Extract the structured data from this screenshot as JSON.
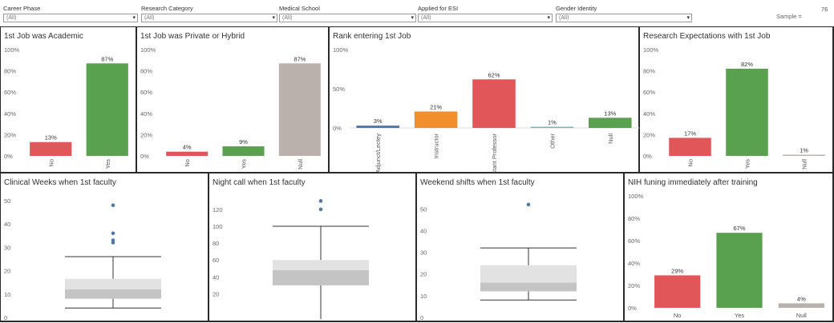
{
  "filters": [
    {
      "label": "Career Phase",
      "value": "(All)"
    },
    {
      "label": "Research Category",
      "value": "(All)"
    },
    {
      "label": "Medical School",
      "value": "(All)"
    },
    {
      "label": "Applied for ESI",
      "value": "(All)"
    },
    {
      "label": "Gender Identity",
      "value": "(All)"
    }
  ],
  "sample": {
    "label": "Sample =",
    "value": "76"
  },
  "colors": {
    "red": "#e15759",
    "green": "#59a14f",
    "gray": "#bab0ac",
    "blue": "#4e79a7",
    "orange": "#f28e2b",
    "teal": "#76b7b2",
    "box_light": "#e2e2e2",
    "box_dark": "#c4c4c4",
    "outlier": "#4e79a7"
  },
  "chart_data": [
    {
      "type": "bar",
      "title": "1st Job was Academic",
      "categories": [
        "No",
        "Yes"
      ],
      "values": [
        13,
        87
      ],
      "labels": [
        "13%",
        "87%"
      ],
      "colors": [
        "#e15759",
        "#59a14f"
      ],
      "ylim": [
        0,
        100
      ],
      "yticks": [
        "0%",
        "20%",
        "40%",
        "60%",
        "80%",
        "100%"
      ],
      "ytick_values": [
        0,
        20,
        40,
        60,
        80,
        100
      ]
    },
    {
      "type": "bar",
      "title": "1st Job was Private or Hybrid",
      "categories": [
        "No",
        "Yes",
        "Null"
      ],
      "values": [
        4,
        9,
        87
      ],
      "labels": [
        "4%",
        "9%",
        "87%"
      ],
      "colors": [
        "#e15759",
        "#59a14f",
        "#bab0ac"
      ],
      "ylim": [
        0,
        100
      ],
      "yticks": [
        "0%",
        "20%",
        "40%",
        "60%",
        "80%",
        "100%"
      ],
      "ytick_values": [
        0,
        20,
        40,
        60,
        80,
        100
      ]
    },
    {
      "type": "bar",
      "title": "Rank entering 1st Job",
      "categories": [
        "Adjunct/Lectey",
        "Instructor",
        "Assistant Professor",
        "Other",
        "Null"
      ],
      "values": [
        3,
        21,
        62,
        1,
        13
      ],
      "labels": [
        "3%",
        "21%",
        "62%",
        "1%",
        "13%"
      ],
      "colors": [
        "#4e79a7",
        "#f28e2b",
        "#e15759",
        "#76b7b2",
        "#59a14f"
      ],
      "ylim": [
        -2,
        100
      ],
      "yticks": [
        "0%",
        "50%",
        "100%"
      ],
      "ytick_values": [
        0,
        50,
        100
      ]
    },
    {
      "type": "bar",
      "title": "Research Expectations with 1st Job",
      "categories": [
        "No",
        "Yes",
        "Null"
      ],
      "values": [
        17,
        82,
        1
      ],
      "labels": [
        "17%",
        "82%",
        "1%"
      ],
      "colors": [
        "#e15759",
        "#59a14f",
        "#bab0ac"
      ],
      "ylim": [
        0,
        100
      ],
      "yticks": [
        "0%",
        "20%",
        "40%",
        "60%",
        "80%",
        "100%"
      ],
      "ytick_values": [
        0,
        20,
        40,
        60,
        80,
        100
      ]
    },
    {
      "type": "box",
      "title": "Clinical Weeks when 1st faculty",
      "ylim": [
        0,
        52
      ],
      "yticks": [
        "0",
        "10",
        "20",
        "30",
        "40",
        "50"
      ],
      "ytick_values": [
        0,
        10,
        20,
        30,
        40,
        50
      ],
      "whisker_low": 4,
      "q1": 8,
      "median": 12,
      "q3": 16.5,
      "whisker_high": 26,
      "outliers": [
        48,
        36,
        33,
        32
      ]
    },
    {
      "type": "box",
      "title": "Night call when 1st faculty",
      "ylim": [
        -8,
        136
      ],
      "yticks": [
        "20",
        "40",
        "60",
        "80",
        "100",
        "120"
      ],
      "ytick_values": [
        20,
        40,
        60,
        80,
        100,
        120
      ],
      "whisker_low": -10,
      "q1": 30,
      "median": 48,
      "q3": 60,
      "whisker_high": 100,
      "outliers": [
        130,
        120
      ]
    },
    {
      "type": "box",
      "title": "Weekend shifts when 1st faculty",
      "ylim": [
        0,
        56
      ],
      "yticks": [
        "0",
        "10",
        "20",
        "30",
        "40",
        "50"
      ],
      "ytick_values": [
        0,
        10,
        20,
        30,
        40,
        50
      ],
      "whisker_low": 8,
      "q1": 12,
      "median": 16,
      "q3": 24,
      "whisker_high": 32,
      "outliers": [
        52
      ]
    },
    {
      "type": "bar",
      "title": "NIH funing immediately after training",
      "categories": [
        "No",
        "Yes",
        "Null"
      ],
      "values": [
        29,
        67,
        4
      ],
      "labels": [
        "29%",
        "67%",
        "4%"
      ],
      "colors": [
        "#e15759",
        "#59a14f",
        "#bab0ac"
      ],
      "ylim": [
        0,
        100
      ],
      "yticks": [
        "0%",
        "20%",
        "40%",
        "60%",
        "80%",
        "100%"
      ],
      "ytick_values": [
        0,
        20,
        40,
        60,
        80,
        100
      ],
      "horizontal_labels": true
    }
  ]
}
